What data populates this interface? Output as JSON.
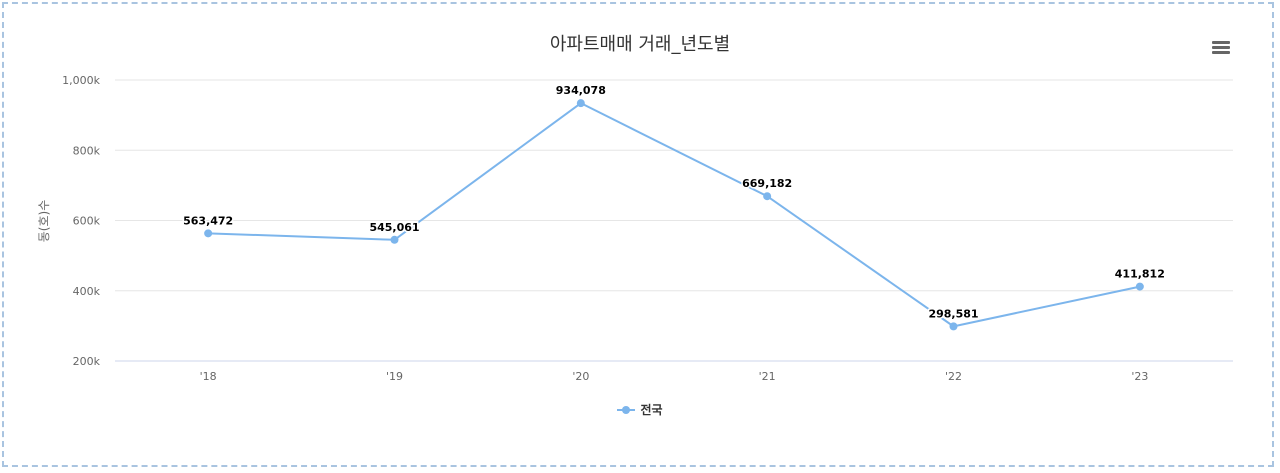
{
  "chart_data": {
    "type": "line",
    "title": "아파트매매 거래_년도별",
    "xlabel": "",
    "ylabel": "동(호)수",
    "categories": [
      "'18",
      "'19",
      "'20",
      "'21",
      "'22",
      "'23"
    ],
    "series": [
      {
        "name": "전국",
        "color": "#7cb5ec",
        "values": [
          563472,
          545061,
          934078,
          669182,
          298581,
          411812
        ],
        "data_labels": [
          "563,472",
          "545,061",
          "934,078",
          "669,182",
          "298,581",
          "411,812"
        ]
      }
    ],
    "ylim": [
      200000,
      1000000
    ],
    "yticks": [
      200000,
      400000,
      600000,
      800000,
      1000000
    ],
    "ytick_labels": [
      "200k",
      "400k",
      "600k",
      "800k",
      "1,000k"
    ],
    "grid": true,
    "legend_position": "bottom-center"
  },
  "menu": {
    "icon": "hamburger-menu-icon"
  }
}
